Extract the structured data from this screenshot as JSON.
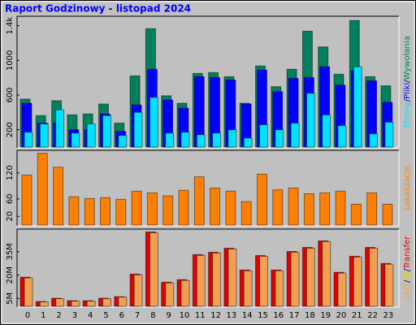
{
  "chart_data": [
    {
      "type": "bar",
      "title": "Raport Godzinowy -  listopad 2024",
      "ylim": [
        0,
        1500
      ],
      "yticks": [
        200,
        600,
        1000,
        {
          "value": 1400,
          "label": "1.4k"
        }
      ],
      "legend_separator": "/",
      "series": [
        {
          "name": "Wywołania",
          "color": "#00805c",
          "values": [
            554,
            363,
            535,
            372,
            382,
            497,
            277,
            821,
            1366,
            592,
            506,
            850,
            860,
            812,
            506,
            936,
            697,
            898,
            1337,
            1156,
            840,
            1461,
            812,
            707
          ]
        },
        {
          "name": "Pliki",
          "color": "#0000ff",
          "values": [
            506,
            277,
            277,
            200,
            200,
            382,
            181,
            487,
            898,
            544,
            449,
            812,
            802,
            774,
            497,
            890,
            640,
            793,
            802,
            927,
            716,
            880,
            764,
            516
          ]
        },
        {
          "name": "Strony",
          "color": "#00e0ff",
          "values": [
            172,
            267,
            430,
            162,
            267,
            363,
            134,
            401,
            573,
            162,
            172,
            143,
            162,
            200,
            105,
            258,
            200,
            277,
            621,
            372,
            248,
            926,
            153,
            287
          ]
        }
      ]
    },
    {
      "type": "bar",
      "ylim": [
        0,
        170
      ],
      "yticks": [
        20,
        60,
        120
      ],
      "series": [
        {
          "name": "Lokalizacje",
          "color": "#ff8000",
          "values": [
            115,
            165,
            133,
            65,
            61,
            63,
            59,
            78,
            74,
            67,
            80,
            111,
            85,
            78,
            54,
            117,
            81,
            85,
            72,
            74,
            78,
            48,
            74,
            48
          ]
        }
      ]
    },
    {
      "type": "bar",
      "categories": [
        "0",
        "1",
        "2",
        "3",
        "4",
        "5",
        "6",
        "7",
        "8",
        "9",
        "10",
        "11",
        "12",
        "13",
        "14",
        "15",
        "16",
        "17",
        "18",
        "19",
        "20",
        "21",
        "22",
        "23"
      ],
      "ylim": [
        0,
        49
      ],
      "yticks": [
        {
          "value": 5,
          "label": "5M"
        },
        {
          "value": 20,
          "label": "20M"
        },
        {
          "value": 35,
          "label": "35M"
        }
      ],
      "legend_separator": "/",
      "series": [
        {
          "name": "Transfer",
          "color": "#e00000",
          "values": [
            18.7,
            3.1,
            5.2,
            3.6,
            3.6,
            5.2,
            6.2,
            20.7,
            47.7,
            15.5,
            17.1,
            33.2,
            34.7,
            37.3,
            23.3,
            32.6,
            23.3,
            35.2,
            37.8,
            42,
            21.8,
            32.1,
            37.8,
            27.5
          ]
        },
        {
          "name": "IN",
          "color": "#d8d800",
          "values": [
            0,
            0,
            0,
            0,
            0,
            0,
            0,
            0,
            0,
            0,
            0,
            0,
            0,
            0,
            0,
            0,
            0,
            0,
            0,
            0,
            0,
            0,
            0,
            0
          ]
        },
        {
          "name": "OUT",
          "color": "#f0a050",
          "values": [
            18.2,
            2.8,
            4.9,
            3.3,
            3.3,
            4.9,
            5.9,
            20.2,
            47.2,
            15.0,
            16.6,
            32.7,
            34.2,
            36.8,
            22.8,
            32.1,
            22.8,
            34.7,
            37.3,
            41.5,
            21.3,
            31.6,
            37.3,
            27.0
          ]
        }
      ]
    }
  ]
}
